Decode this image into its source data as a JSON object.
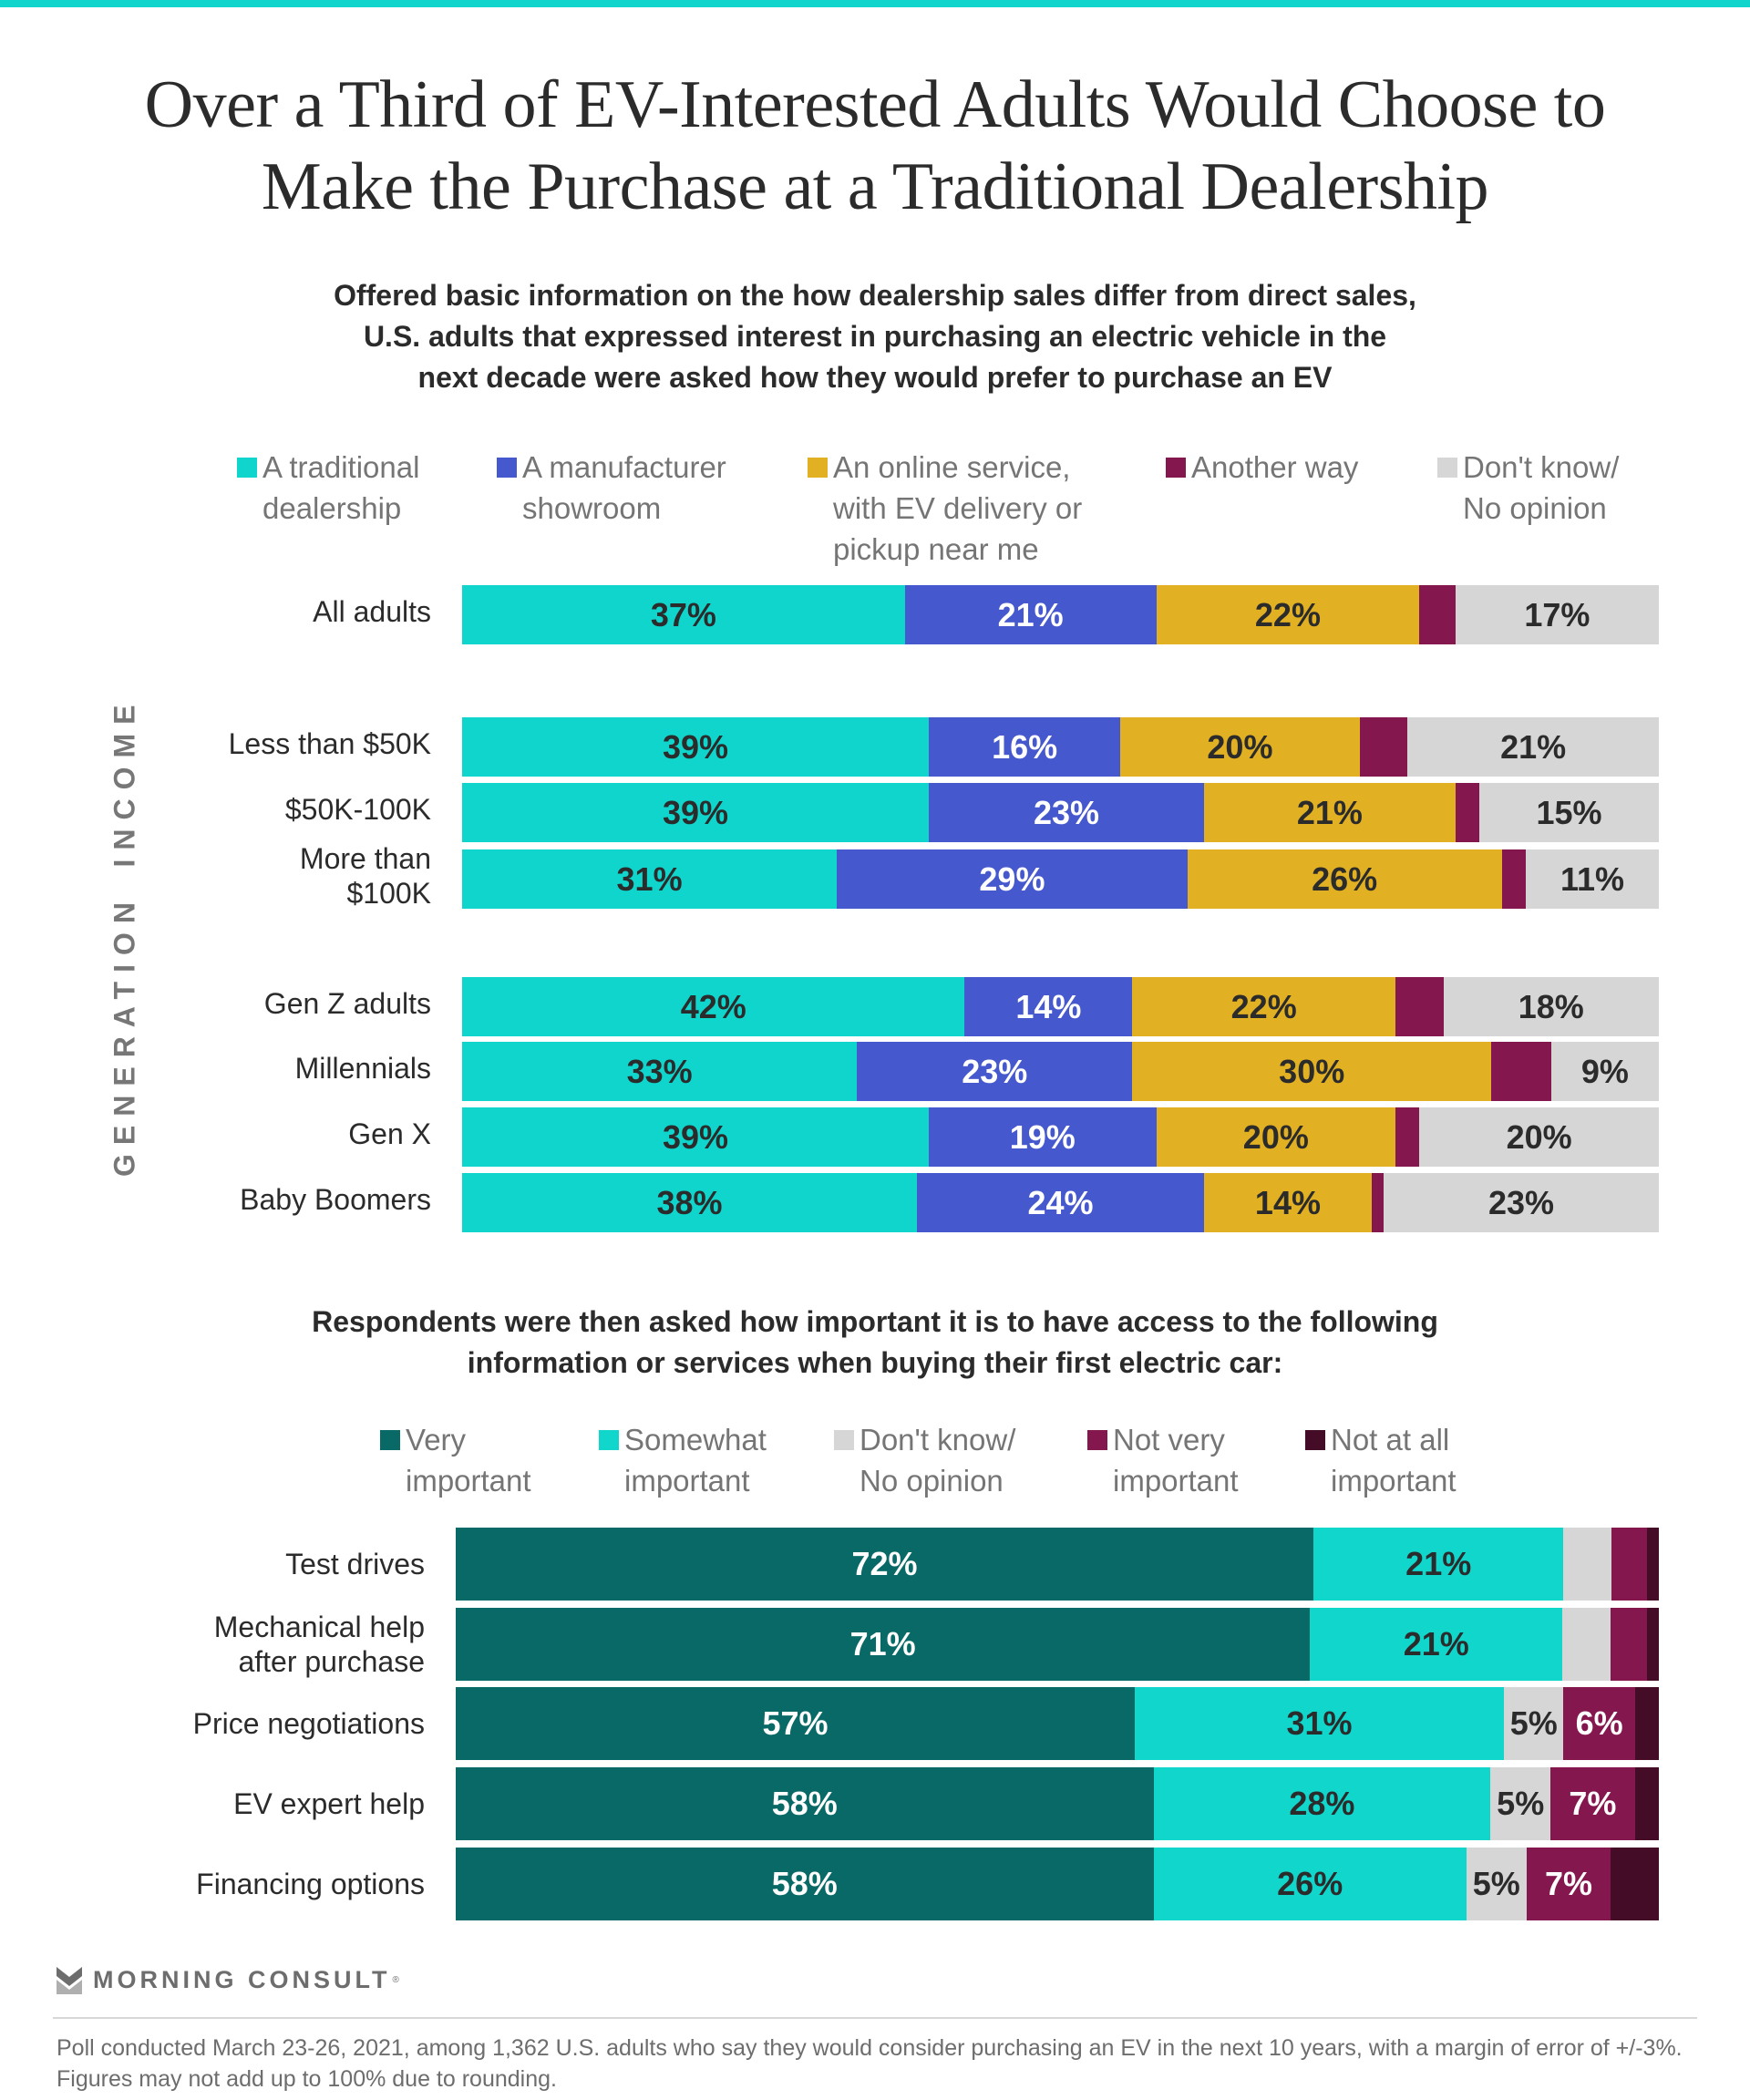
{
  "header": {
    "title_line1": "Over a Third of EV-Interested Adults Would Choose to",
    "title_line2": "Make the Purchase at a Traditional Dealership",
    "accent_color": "#10d5cc"
  },
  "chart_data": [
    {
      "type": "bar",
      "orientation": "horizontal",
      "stacked": true,
      "subtitle_lines": [
        "Offered basic information on the how dealership sales differ from direct sales,",
        "U.S. adults that expressed interest in purchasing an electric vehicle in the",
        "next decade were asked how they would prefer to purchase an EV"
      ],
      "legend_placement": "top",
      "categories": [
        "All adults",
        "Less than $50K",
        "$50K-100K",
        "More than\n$100K",
        "Gen Z adults",
        "Millennials",
        "Gen X",
        "Baby Boomers"
      ],
      "groups": [
        {
          "name": "",
          "rows": [
            0
          ]
        },
        {
          "name": "INCOME",
          "rows": [
            1,
            2,
            3
          ]
        },
        {
          "name": "GENERATION",
          "rows": [
            4,
            5,
            6,
            7
          ]
        }
      ],
      "series": [
        {
          "name": "A traditional dealership",
          "legend": "A traditional\ndealership",
          "color": "#10d5cc",
          "label_color": "#2b2b2b",
          "values": [
            37,
            39,
            39,
            31,
            42,
            33,
            39,
            38
          ],
          "labels": [
            "37%",
            "39%",
            "39%",
            "31%",
            "42%",
            "33%",
            "39%",
            "38%"
          ]
        },
        {
          "name": "A manufacturer showroom",
          "legend": "A manufacturer\nshowroom",
          "color": "#4658cd",
          "label_color": "#ffffff",
          "values": [
            21,
            16,
            23,
            29,
            14,
            23,
            19,
            24
          ],
          "labels": [
            "21%",
            "16%",
            "23%",
            "29%",
            "14%",
            "23%",
            "19%",
            "24%"
          ]
        },
        {
          "name": "An online service, with EV delivery or pickup near me",
          "legend": "An online service,\nwith EV delivery or\npickup near me",
          "color": "#e2b023",
          "label_color": "#2b2b2b",
          "values": [
            22,
            20,
            21,
            26,
            22,
            30,
            20,
            14
          ],
          "labels": [
            "22%",
            "20%",
            "21%",
            "26%",
            "22%",
            "30%",
            "20%",
            "14%"
          ]
        },
        {
          "name": "Another way",
          "legend": "Another way",
          "color": "#84174e",
          "label_color": "#ffffff",
          "values": [
            3,
            4,
            2,
            2,
            4,
            5,
            2,
            1
          ],
          "labels": [
            "",
            "",
            "",
            "",
            "",
            "",
            "",
            ""
          ]
        },
        {
          "name": "Don't know/No opinion",
          "legend": "Don't know/\nNo opinion",
          "color": "#d6d6d6",
          "label_color": "#2b2b2b",
          "values": [
            17,
            21,
            15,
            11,
            18,
            9,
            20,
            23
          ],
          "labels": [
            "17%",
            "21%",
            "15%",
            "11%",
            "18%",
            "9%",
            "20%",
            "23%"
          ]
        }
      ],
      "xlim": [
        0,
        100
      ],
      "grid": false
    },
    {
      "type": "bar",
      "orientation": "horizontal",
      "stacked": true,
      "subtitle_lines": [
        "Respondents were then asked how important it is to have access to the following",
        "information or services when buying their first electric car:"
      ],
      "legend_placement": "top",
      "categories": [
        "Test drives",
        "Mechanical help\nafter purchase",
        "Price negotiations",
        "EV expert help",
        "Financing options"
      ],
      "series": [
        {
          "name": "Very important",
          "legend": "Very\nimportant",
          "color": "#086966",
          "label_color": "#ffffff",
          "values": [
            72,
            71,
            57,
            58,
            58
          ],
          "labels": [
            "72%",
            "71%",
            "57%",
            "58%",
            "58%"
          ]
        },
        {
          "name": "Somewhat important",
          "legend": "Somewhat\nimportant",
          "color": "#10d6cc",
          "label_color": "#2b2b2b",
          "values": [
            21,
            21,
            31,
            28,
            26
          ],
          "labels": [
            "21%",
            "21%",
            "31%",
            "28%",
            "26%"
          ]
        },
        {
          "name": "Don't know/No opinion",
          "legend": "Don't know/\nNo opinion",
          "color": "#d6d6d6",
          "label_color": "#2b2b2b",
          "values": [
            4,
            4,
            5,
            5,
            5
          ],
          "labels": [
            "",
            "",
            "5%",
            "5%",
            "5%"
          ]
        },
        {
          "name": "Not very important",
          "legend": "Not very\nimportant",
          "color": "#84174e",
          "label_color": "#ffffff",
          "values": [
            3,
            3,
            6,
            7,
            7
          ],
          "labels": [
            "",
            "",
            "6%",
            "7%",
            "7%"
          ]
        },
        {
          "name": "Not at all important",
          "legend": "Not at all\nimportant",
          "color": "#440c27",
          "label_color": "#ffffff",
          "values": [
            1,
            1,
            2,
            2,
            4
          ],
          "labels": [
            "",
            "",
            "",
            "",
            ""
          ]
        }
      ],
      "xlim": [
        0,
        100
      ],
      "grid": false
    }
  ],
  "footer": {
    "logo_text": "MORNING CONSULT",
    "logo_mark": "®",
    "note": "Poll conducted March 23-26, 2021, among 1,362 U.S. adults who say they would consider purchasing an EV in the next 10 years, with a margin of error of +/-3%. Figures may not add up to 100% due to rounding."
  }
}
